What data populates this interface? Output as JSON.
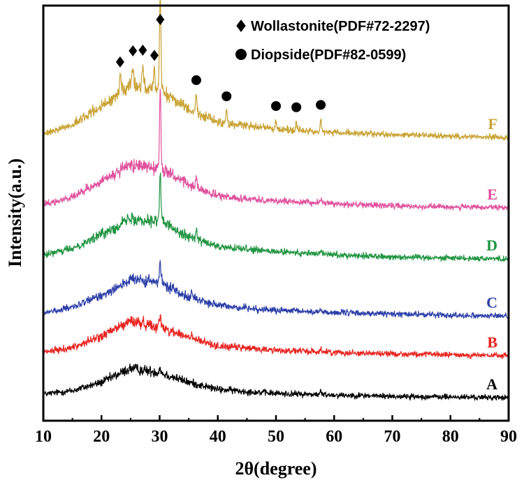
{
  "chart_data": {
    "type": "line",
    "xlabel": "2θ(degree)",
    "ylabel": "Intensity(a.u.)",
    "xlim": [
      10,
      90
    ],
    "xticks": [
      10,
      20,
      30,
      40,
      50,
      60,
      70,
      80,
      90
    ],
    "y_axis_ticks_labeled": false,
    "grid": false,
    "series": [
      {
        "name": "A",
        "color": "#000000",
        "profile": [
          [
            10,
            0.05
          ],
          [
            15,
            0.1
          ],
          [
            20,
            0.22
          ],
          [
            25,
            0.42
          ],
          [
            30,
            0.36
          ],
          [
            35,
            0.22
          ],
          [
            40,
            0.12
          ],
          [
            50,
            0.06
          ],
          [
            60,
            0.04
          ],
          [
            70,
            0.02
          ],
          [
            90,
            0.0
          ]
        ],
        "peaks": [
          [
            30.1,
            0.15
          ],
          [
            57.7,
            0.08
          ]
        ]
      },
      {
        "name": "B",
        "color": "#e8231f",
        "profile": [
          [
            10,
            0.05
          ],
          [
            15,
            0.12
          ],
          [
            20,
            0.28
          ],
          [
            25,
            0.5
          ],
          [
            30,
            0.42
          ],
          [
            35,
            0.26
          ],
          [
            40,
            0.14
          ],
          [
            50,
            0.08
          ],
          [
            60,
            0.05
          ],
          [
            70,
            0.03
          ],
          [
            90,
            0.0
          ]
        ],
        "peaks": [
          [
            30.1,
            0.3
          ],
          [
            35.5,
            0.1
          ],
          [
            57.7,
            0.08
          ]
        ]
      },
      {
        "name": "C",
        "color": "#2b3ea8",
        "profile": [
          [
            10,
            0.05
          ],
          [
            15,
            0.12
          ],
          [
            20,
            0.3
          ],
          [
            25,
            0.52
          ],
          [
            30,
            0.48
          ],
          [
            35,
            0.28
          ],
          [
            40,
            0.15
          ],
          [
            50,
            0.08
          ],
          [
            60,
            0.05
          ],
          [
            70,
            0.03
          ],
          [
            90,
            0.0
          ]
        ],
        "peaks": [
          [
            30.1,
            0.6
          ],
          [
            35.5,
            0.15
          ],
          [
            57.7,
            0.1
          ]
        ]
      },
      {
        "name": "D",
        "color": "#1f9440",
        "profile": [
          [
            10,
            0.05
          ],
          [
            15,
            0.15
          ],
          [
            20,
            0.35
          ],
          [
            25,
            0.58
          ],
          [
            30,
            0.55
          ],
          [
            35,
            0.32
          ],
          [
            40,
            0.17
          ],
          [
            50,
            0.1
          ],
          [
            60,
            0.06
          ],
          [
            70,
            0.03
          ],
          [
            90,
            0.0
          ]
        ],
        "peaks": [
          [
            30.1,
            1.3
          ],
          [
            36.3,
            0.25
          ],
          [
            57.7,
            0.12
          ]
        ]
      },
      {
        "name": "E",
        "color": "#e0519d",
        "profile": [
          [
            10,
            0.05
          ],
          [
            15,
            0.15
          ],
          [
            20,
            0.38
          ],
          [
            25,
            0.62
          ],
          [
            30,
            0.58
          ],
          [
            35,
            0.33
          ],
          [
            40,
            0.17
          ],
          [
            50,
            0.1
          ],
          [
            60,
            0.06
          ],
          [
            70,
            0.03
          ],
          [
            90,
            0.0
          ]
        ],
        "peaks": [
          [
            30.1,
            2.1
          ],
          [
            36.3,
            0.3
          ],
          [
            57.7,
            0.15
          ]
        ]
      },
      {
        "name": "F",
        "color": "#c9a233",
        "profile": [
          [
            10,
            0.05
          ],
          [
            15,
            0.18
          ],
          [
            20,
            0.45
          ],
          [
            25,
            0.75
          ],
          [
            30,
            0.7
          ],
          [
            35,
            0.4
          ],
          [
            40,
            0.22
          ],
          [
            50,
            0.12
          ],
          [
            60,
            0.07
          ],
          [
            70,
            0.04
          ],
          [
            90,
            0.0
          ]
        ],
        "peaks": [
          [
            23.2,
            0.4
          ],
          [
            25.4,
            0.5
          ],
          [
            27.1,
            0.55
          ],
          [
            29.1,
            0.45
          ],
          [
            30.1,
            2.6
          ],
          [
            36.3,
            0.45
          ],
          [
            41.5,
            0.3
          ],
          [
            50.0,
            0.2
          ],
          [
            53.5,
            0.2
          ],
          [
            57.7,
            0.3
          ]
        ]
      }
    ],
    "legend": [
      {
        "marker": "diamond",
        "label": "Wollastonite(PDF#72-2297)"
      },
      {
        "marker": "circle",
        "label": "Diopside(PDF#82-0599)"
      }
    ],
    "legend_position": "top-right",
    "annotations": {
      "wollastonite_peaks": [
        23.2,
        25.4,
        27.1,
        29.1,
        30.1
      ],
      "diopside_peaks": [
        36.3,
        41.5,
        50.0,
        53.5,
        57.7
      ]
    }
  }
}
